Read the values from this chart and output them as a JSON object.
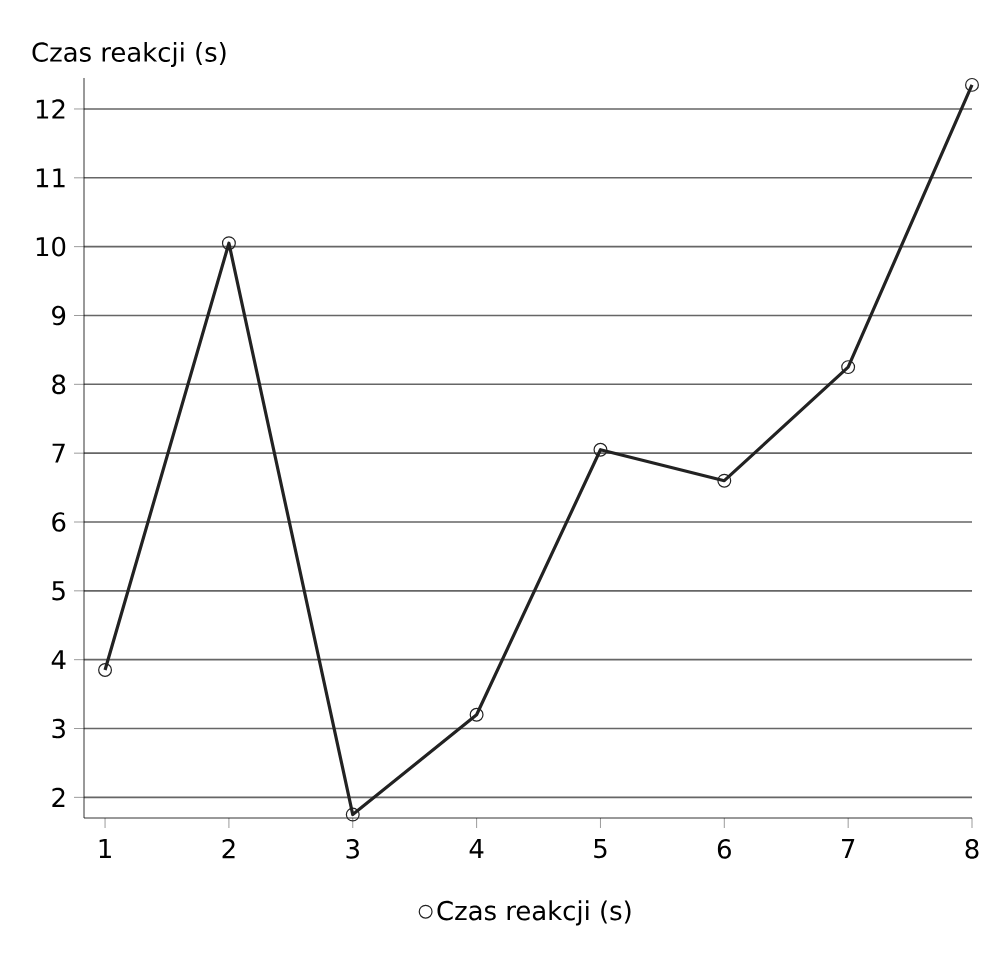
{
  "chart_data": {
    "type": "line",
    "ylabel": "Czas reakcji (s)",
    "x": [
      1,
      2,
      3,
      4,
      5,
      6,
      7,
      8
    ],
    "series": [
      {
        "name": "Czas reakcji (s)",
        "color": "#222222",
        "values": [
          3.85,
          10.05,
          1.75,
          3.2,
          7.05,
          6.6,
          8.25,
          12.35
        ]
      }
    ],
    "xlim": [
      0.83,
      8.0
    ],
    "ylim": [
      1.7,
      12.45
    ],
    "xticks": [
      1,
      2,
      3,
      4,
      5,
      6,
      7,
      8
    ],
    "yticks": [
      2,
      3,
      4,
      5,
      6,
      7,
      8,
      9,
      10,
      11,
      12
    ],
    "grid": "y",
    "legend": "bottom",
    "marker": "circle",
    "line_style": "solid"
  }
}
